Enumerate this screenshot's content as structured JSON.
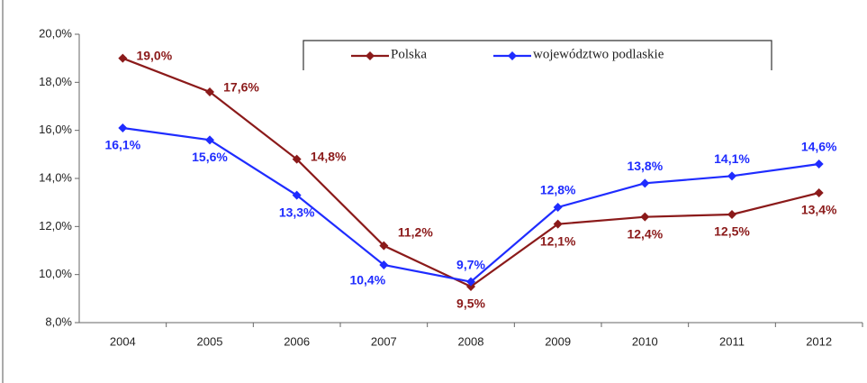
{
  "chart_data": {
    "type": "line",
    "categories": [
      "2004",
      "2005",
      "2006",
      "2007",
      "2008",
      "2009",
      "2010",
      "2011",
      "2012"
    ],
    "series": [
      {
        "name": "Polska",
        "color": "#8b1a1a",
        "values": [
          19.0,
          17.6,
          14.8,
          11.2,
          9.5,
          12.1,
          12.4,
          12.5,
          13.4
        ],
        "value_labels": [
          "19,0%",
          "17,6%",
          "14,8%",
          "11,2%",
          "9,5%",
          "12,1%",
          "12,4%",
          "12,5%",
          "13,4%"
        ]
      },
      {
        "name": "województwo podlaskie",
        "color": "#1f2cff",
        "values": [
          16.1,
          15.6,
          13.3,
          10.4,
          9.7,
          12.8,
          13.8,
          14.1,
          14.6
        ],
        "value_labels": [
          "16,1%",
          "15,6%",
          "13,3%",
          "10,4%",
          "9,7%",
          "12,8%",
          "13,8%",
          "14,1%",
          "14,6%"
        ]
      }
    ],
    "ylim": [
      8,
      20
    ],
    "yticks": [
      {
        "value": 8,
        "label": "8,0%"
      },
      {
        "value": 10,
        "label": "10,0%"
      },
      {
        "value": 12,
        "label": "12,0%"
      },
      {
        "value": 14,
        "label": "14,0%"
      },
      {
        "value": 16,
        "label": "16,0%"
      },
      {
        "value": 18,
        "label": "18,0%"
      },
      {
        "value": 20,
        "label": "20,0%"
      }
    ],
    "grid": false
  }
}
